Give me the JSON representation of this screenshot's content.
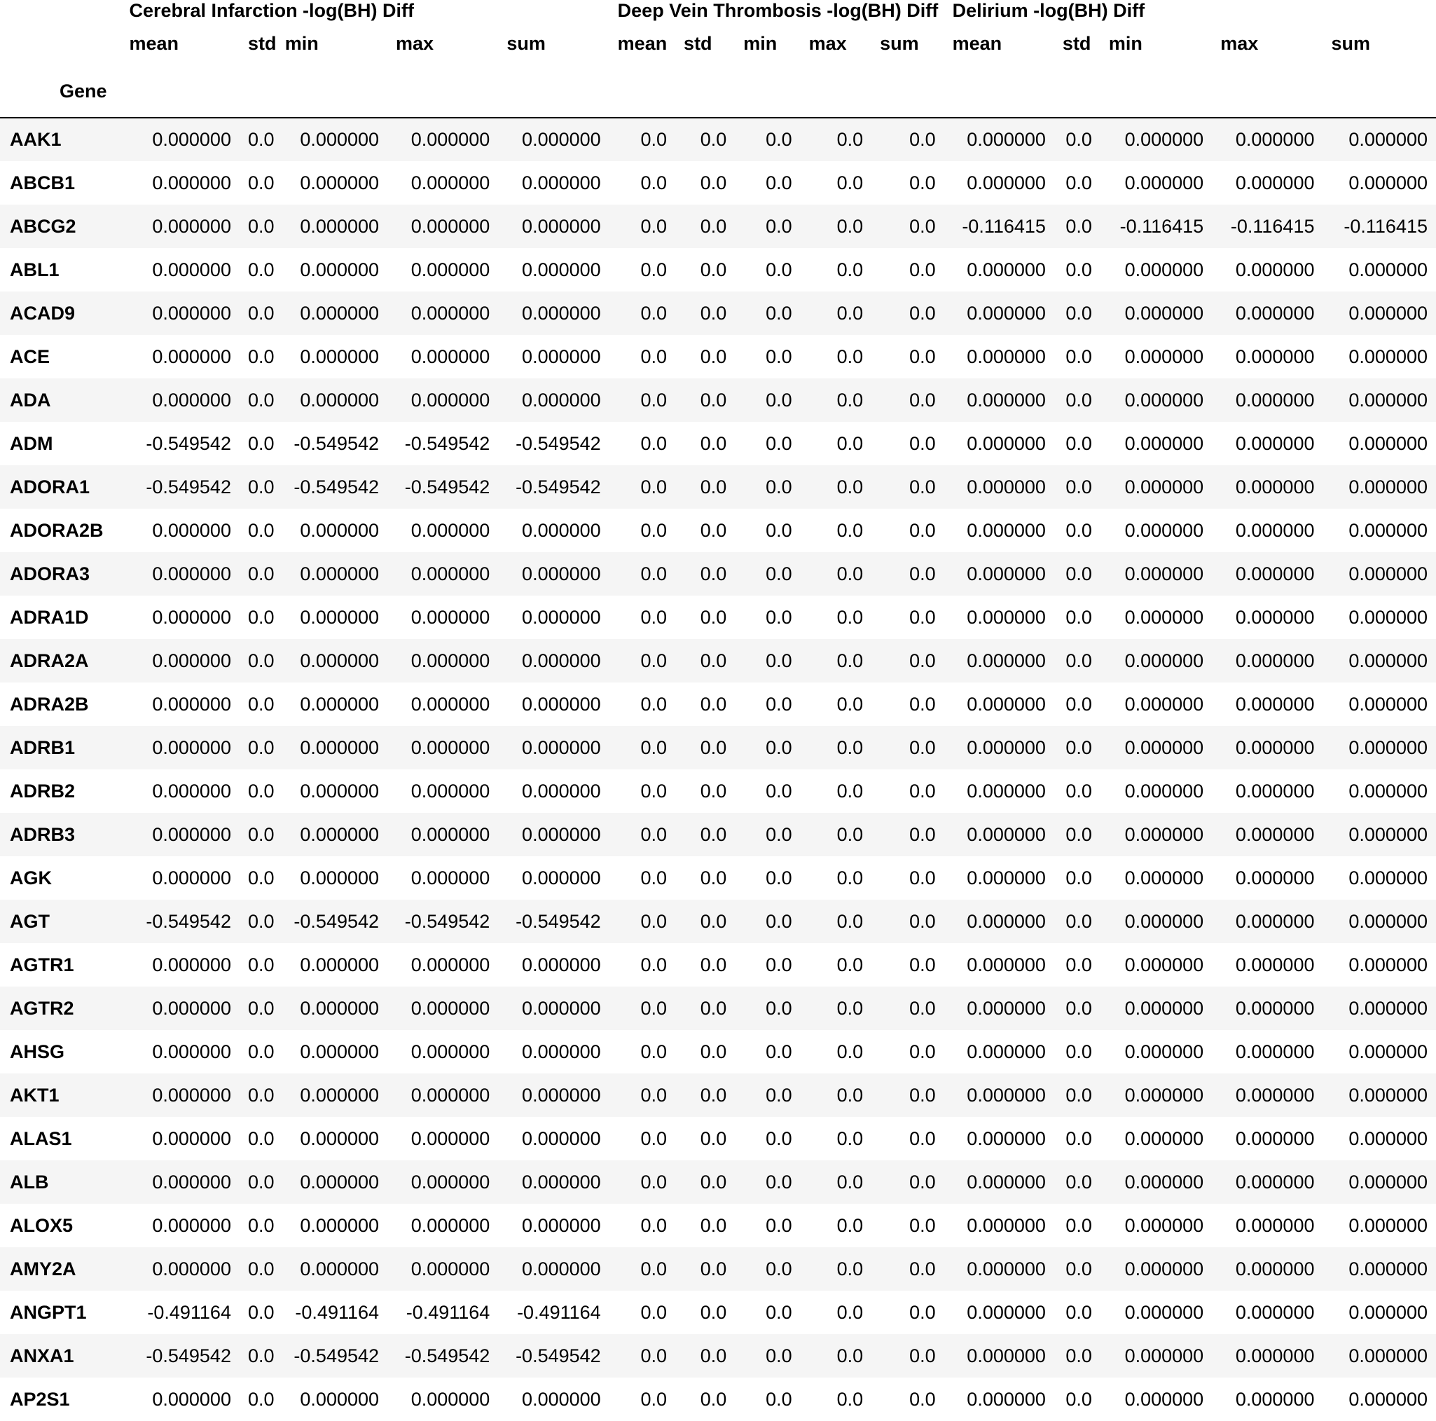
{
  "groups": [
    "Cerebral Infarction -log(BH) Diff",
    "Deep Vein Thrombosis -log(BH) Diff",
    "Delirium -log(BH) Diff"
  ],
  "stats": [
    "mean",
    "std",
    "min",
    "max",
    "sum"
  ],
  "index_name": "Gene",
  "rows": [
    {
      "gene": "AAK1",
      "values": [
        "0.000000",
        "0.0",
        "0.000000",
        "0.000000",
        "0.000000",
        "0.0",
        "0.0",
        "0.0",
        "0.0",
        "0.0",
        "0.000000",
        "0.0",
        "0.000000",
        "0.000000",
        "0.000000"
      ]
    },
    {
      "gene": "ABCB1",
      "values": [
        "0.000000",
        "0.0",
        "0.000000",
        "0.000000",
        "0.000000",
        "0.0",
        "0.0",
        "0.0",
        "0.0",
        "0.0",
        "0.000000",
        "0.0",
        "0.000000",
        "0.000000",
        "0.000000"
      ]
    },
    {
      "gene": "ABCG2",
      "values": [
        "0.000000",
        "0.0",
        "0.000000",
        "0.000000",
        "0.000000",
        "0.0",
        "0.0",
        "0.0",
        "0.0",
        "0.0",
        "-0.116415",
        "0.0",
        "-0.116415",
        "-0.116415",
        "-0.116415"
      ]
    },
    {
      "gene": "ABL1",
      "values": [
        "0.000000",
        "0.0",
        "0.000000",
        "0.000000",
        "0.000000",
        "0.0",
        "0.0",
        "0.0",
        "0.0",
        "0.0",
        "0.000000",
        "0.0",
        "0.000000",
        "0.000000",
        "0.000000"
      ]
    },
    {
      "gene": "ACAD9",
      "values": [
        "0.000000",
        "0.0",
        "0.000000",
        "0.000000",
        "0.000000",
        "0.0",
        "0.0",
        "0.0",
        "0.0",
        "0.0",
        "0.000000",
        "0.0",
        "0.000000",
        "0.000000",
        "0.000000"
      ]
    },
    {
      "gene": "ACE",
      "values": [
        "0.000000",
        "0.0",
        "0.000000",
        "0.000000",
        "0.000000",
        "0.0",
        "0.0",
        "0.0",
        "0.0",
        "0.0",
        "0.000000",
        "0.0",
        "0.000000",
        "0.000000",
        "0.000000"
      ]
    },
    {
      "gene": "ADA",
      "values": [
        "0.000000",
        "0.0",
        "0.000000",
        "0.000000",
        "0.000000",
        "0.0",
        "0.0",
        "0.0",
        "0.0",
        "0.0",
        "0.000000",
        "0.0",
        "0.000000",
        "0.000000",
        "0.000000"
      ]
    },
    {
      "gene": "ADM",
      "values": [
        "-0.549542",
        "0.0",
        "-0.549542",
        "-0.549542",
        "-0.549542",
        "0.0",
        "0.0",
        "0.0",
        "0.0",
        "0.0",
        "0.000000",
        "0.0",
        "0.000000",
        "0.000000",
        "0.000000"
      ]
    },
    {
      "gene": "ADORA1",
      "values": [
        "-0.549542",
        "0.0",
        "-0.549542",
        "-0.549542",
        "-0.549542",
        "0.0",
        "0.0",
        "0.0",
        "0.0",
        "0.0",
        "0.000000",
        "0.0",
        "0.000000",
        "0.000000",
        "0.000000"
      ]
    },
    {
      "gene": "ADORA2B",
      "values": [
        "0.000000",
        "0.0",
        "0.000000",
        "0.000000",
        "0.000000",
        "0.0",
        "0.0",
        "0.0",
        "0.0",
        "0.0",
        "0.000000",
        "0.0",
        "0.000000",
        "0.000000",
        "0.000000"
      ]
    },
    {
      "gene": "ADORA3",
      "values": [
        "0.000000",
        "0.0",
        "0.000000",
        "0.000000",
        "0.000000",
        "0.0",
        "0.0",
        "0.0",
        "0.0",
        "0.0",
        "0.000000",
        "0.0",
        "0.000000",
        "0.000000",
        "0.000000"
      ]
    },
    {
      "gene": "ADRA1D",
      "values": [
        "0.000000",
        "0.0",
        "0.000000",
        "0.000000",
        "0.000000",
        "0.0",
        "0.0",
        "0.0",
        "0.0",
        "0.0",
        "0.000000",
        "0.0",
        "0.000000",
        "0.000000",
        "0.000000"
      ]
    },
    {
      "gene": "ADRA2A",
      "values": [
        "0.000000",
        "0.0",
        "0.000000",
        "0.000000",
        "0.000000",
        "0.0",
        "0.0",
        "0.0",
        "0.0",
        "0.0",
        "0.000000",
        "0.0",
        "0.000000",
        "0.000000",
        "0.000000"
      ]
    },
    {
      "gene": "ADRA2B",
      "values": [
        "0.000000",
        "0.0",
        "0.000000",
        "0.000000",
        "0.000000",
        "0.0",
        "0.0",
        "0.0",
        "0.0",
        "0.0",
        "0.000000",
        "0.0",
        "0.000000",
        "0.000000",
        "0.000000"
      ]
    },
    {
      "gene": "ADRB1",
      "values": [
        "0.000000",
        "0.0",
        "0.000000",
        "0.000000",
        "0.000000",
        "0.0",
        "0.0",
        "0.0",
        "0.0",
        "0.0",
        "0.000000",
        "0.0",
        "0.000000",
        "0.000000",
        "0.000000"
      ]
    },
    {
      "gene": "ADRB2",
      "values": [
        "0.000000",
        "0.0",
        "0.000000",
        "0.000000",
        "0.000000",
        "0.0",
        "0.0",
        "0.0",
        "0.0",
        "0.0",
        "0.000000",
        "0.0",
        "0.000000",
        "0.000000",
        "0.000000"
      ]
    },
    {
      "gene": "ADRB3",
      "values": [
        "0.000000",
        "0.0",
        "0.000000",
        "0.000000",
        "0.000000",
        "0.0",
        "0.0",
        "0.0",
        "0.0",
        "0.0",
        "0.000000",
        "0.0",
        "0.000000",
        "0.000000",
        "0.000000"
      ]
    },
    {
      "gene": "AGK",
      "values": [
        "0.000000",
        "0.0",
        "0.000000",
        "0.000000",
        "0.000000",
        "0.0",
        "0.0",
        "0.0",
        "0.0",
        "0.0",
        "0.000000",
        "0.0",
        "0.000000",
        "0.000000",
        "0.000000"
      ]
    },
    {
      "gene": "AGT",
      "values": [
        "-0.549542",
        "0.0",
        "-0.549542",
        "-0.549542",
        "-0.549542",
        "0.0",
        "0.0",
        "0.0",
        "0.0",
        "0.0",
        "0.000000",
        "0.0",
        "0.000000",
        "0.000000",
        "0.000000"
      ]
    },
    {
      "gene": "AGTR1",
      "values": [
        "0.000000",
        "0.0",
        "0.000000",
        "0.000000",
        "0.000000",
        "0.0",
        "0.0",
        "0.0",
        "0.0",
        "0.0",
        "0.000000",
        "0.0",
        "0.000000",
        "0.000000",
        "0.000000"
      ]
    },
    {
      "gene": "AGTR2",
      "values": [
        "0.000000",
        "0.0",
        "0.000000",
        "0.000000",
        "0.000000",
        "0.0",
        "0.0",
        "0.0",
        "0.0",
        "0.0",
        "0.000000",
        "0.0",
        "0.000000",
        "0.000000",
        "0.000000"
      ]
    },
    {
      "gene": "AHSG",
      "values": [
        "0.000000",
        "0.0",
        "0.000000",
        "0.000000",
        "0.000000",
        "0.0",
        "0.0",
        "0.0",
        "0.0",
        "0.0",
        "0.000000",
        "0.0",
        "0.000000",
        "0.000000",
        "0.000000"
      ]
    },
    {
      "gene": "AKT1",
      "values": [
        "0.000000",
        "0.0",
        "0.000000",
        "0.000000",
        "0.000000",
        "0.0",
        "0.0",
        "0.0",
        "0.0",
        "0.0",
        "0.000000",
        "0.0",
        "0.000000",
        "0.000000",
        "0.000000"
      ]
    },
    {
      "gene": "ALAS1",
      "values": [
        "0.000000",
        "0.0",
        "0.000000",
        "0.000000",
        "0.000000",
        "0.0",
        "0.0",
        "0.0",
        "0.0",
        "0.0",
        "0.000000",
        "0.0",
        "0.000000",
        "0.000000",
        "0.000000"
      ]
    },
    {
      "gene": "ALB",
      "values": [
        "0.000000",
        "0.0",
        "0.000000",
        "0.000000",
        "0.000000",
        "0.0",
        "0.0",
        "0.0",
        "0.0",
        "0.0",
        "0.000000",
        "0.0",
        "0.000000",
        "0.000000",
        "0.000000"
      ]
    },
    {
      "gene": "ALOX5",
      "values": [
        "0.000000",
        "0.0",
        "0.000000",
        "0.000000",
        "0.000000",
        "0.0",
        "0.0",
        "0.0",
        "0.0",
        "0.0",
        "0.000000",
        "0.0",
        "0.000000",
        "0.000000",
        "0.000000"
      ]
    },
    {
      "gene": "AMY2A",
      "values": [
        "0.000000",
        "0.0",
        "0.000000",
        "0.000000",
        "0.000000",
        "0.0",
        "0.0",
        "0.0",
        "0.0",
        "0.0",
        "0.000000",
        "0.0",
        "0.000000",
        "0.000000",
        "0.000000"
      ]
    },
    {
      "gene": "ANGPT1",
      "values": [
        "-0.491164",
        "0.0",
        "-0.491164",
        "-0.491164",
        "-0.491164",
        "0.0",
        "0.0",
        "0.0",
        "0.0",
        "0.0",
        "0.000000",
        "0.0",
        "0.000000",
        "0.000000",
        "0.000000"
      ]
    },
    {
      "gene": "ANXA1",
      "values": [
        "-0.549542",
        "0.0",
        "-0.549542",
        "-0.549542",
        "-0.549542",
        "0.0",
        "0.0",
        "0.0",
        "0.0",
        "0.0",
        "0.000000",
        "0.0",
        "0.000000",
        "0.000000",
        "0.000000"
      ]
    },
    {
      "gene": "AP2S1",
      "values": [
        "0.000000",
        "0.0",
        "0.000000",
        "0.000000",
        "0.000000",
        "0.0",
        "0.0",
        "0.0",
        "0.0",
        "0.0",
        "0.000000",
        "0.0",
        "0.000000",
        "0.000000",
        "0.000000"
      ]
    }
  ]
}
